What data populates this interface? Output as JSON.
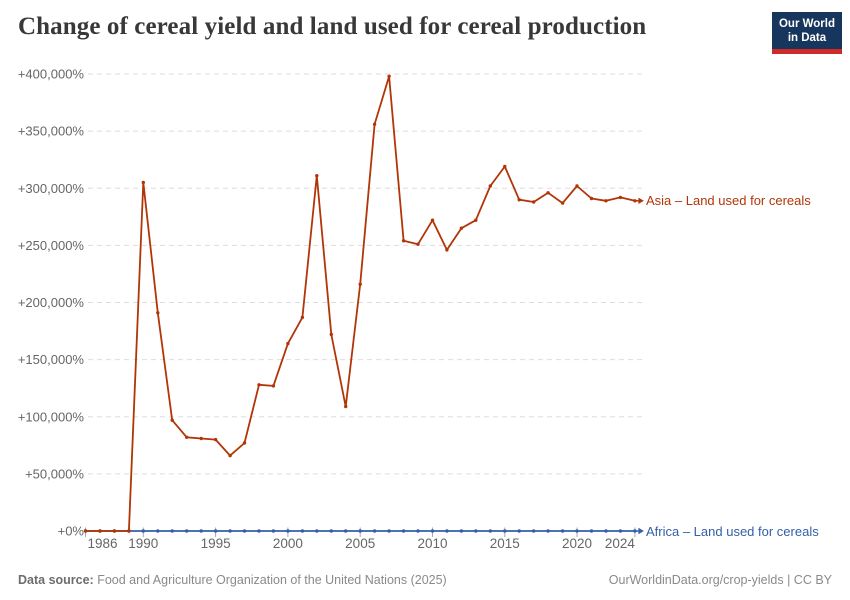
{
  "header": {
    "title": "Change of cereal yield and land used for cereal production",
    "logo": {
      "line1": "Our World",
      "line2": "in Data",
      "bg_color": "#17365d",
      "accent_color": "#cf2a27"
    }
  },
  "footer": {
    "datasource_label": "Data source:",
    "datasource_text": " Food and Agriculture Organization of the United Nations (2025)",
    "credit": "OurWorldinData.org/crop-yields | CC BY"
  },
  "chart_data": {
    "type": "line",
    "title": "Change of cereal yield and land used for cereal production",
    "xlabel": "",
    "ylabel": "",
    "xlim": [
      1986,
      2024
    ],
    "ylim": [
      0,
      400000
    ],
    "grid": "horizontal-dashed",
    "legend_position": "right-end-labels",
    "grid_color": "#dddddd",
    "tick_label_color": "#666666",
    "y_ticks": [
      {
        "v": 0,
        "label": "+0%"
      },
      {
        "v": 50000,
        "label": "+50,000%"
      },
      {
        "v": 100000,
        "label": "+100,000%"
      },
      {
        "v": 150000,
        "label": "+150,000%"
      },
      {
        "v": 200000,
        "label": "+200,000%"
      },
      {
        "v": 250000,
        "label": "+250,000%"
      },
      {
        "v": 300000,
        "label": "+300,000%"
      },
      {
        "v": 350000,
        "label": "+350,000%"
      },
      {
        "v": 400000,
        "label": "+400,000%"
      }
    ],
    "x_ticks": [
      {
        "v": 1986,
        "label": "1986"
      },
      {
        "v": 1990,
        "label": "1990"
      },
      {
        "v": 1995,
        "label": "1995"
      },
      {
        "v": 2000,
        "label": "2000"
      },
      {
        "v": 2005,
        "label": "2005"
      },
      {
        "v": 2010,
        "label": "2010"
      },
      {
        "v": 2015,
        "label": "2015"
      },
      {
        "v": 2020,
        "label": "2020"
      },
      {
        "v": 2024,
        "label": "2024"
      }
    ],
    "x": [
      1986,
      1987,
      1988,
      1989,
      1990,
      1991,
      1992,
      1993,
      1994,
      1995,
      1996,
      1997,
      1998,
      1999,
      2000,
      2001,
      2002,
      2003,
      2004,
      2005,
      2006,
      2007,
      2008,
      2009,
      2010,
      2011,
      2012,
      2013,
      2014,
      2015,
      2016,
      2017,
      2018,
      2019,
      2020,
      2021,
      2022,
      2023,
      2024
    ],
    "series": [
      {
        "name": "Africa – Land used for cereals",
        "color": "#3360a9",
        "values": [
          0,
          0,
          0,
          0,
          0,
          0,
          0,
          0,
          0,
          0,
          0,
          0,
          0,
          0,
          0,
          0,
          0,
          0,
          0,
          0,
          0,
          0,
          0,
          0,
          0,
          0,
          0,
          0,
          0,
          0,
          0,
          0,
          0,
          0,
          0,
          0,
          0,
          0,
          0
        ]
      },
      {
        "name": "Asia – Land used for cereals",
        "color": "#b13507",
        "values": [
          0,
          0,
          0,
          0,
          305000,
          191000,
          97000,
          82000,
          81000,
          80000,
          66000,
          77000,
          128000,
          127000,
          164000,
          187000,
          311000,
          172000,
          109000,
          216000,
          356000,
          398000,
          254000,
          251000,
          272000,
          246000,
          265000,
          272000,
          302000,
          319000,
          290000,
          288000,
          296000,
          287000,
          302000,
          291000,
          289000,
          292000,
          289000
        ]
      }
    ]
  }
}
